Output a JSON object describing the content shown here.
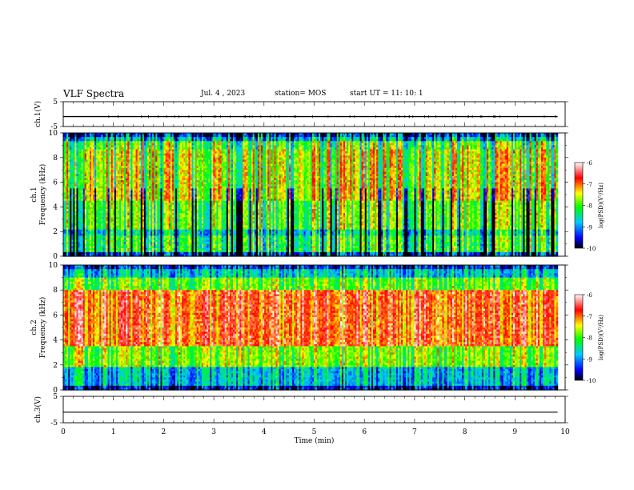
{
  "header": {
    "title": "VLF Spectra",
    "date": "Jul. 4 , 2023",
    "station": "station= MOS",
    "start_ut": "start UT = 11: 10: 1"
  },
  "chart_data": [
    {
      "type": "line",
      "panel": "ch1-waveform",
      "ylabel": "ch.1(V)",
      "ylim": [
        -5,
        5
      ],
      "yticks": [
        "5",
        "-5"
      ],
      "baseline_value": -1.0
    },
    {
      "type": "heatmap",
      "panel": "ch1-spectrogram",
      "ylabel": "ch.1",
      "ylabel2": "Frequency (kHz)",
      "ylim": [
        0,
        10
      ],
      "yticks": [
        "10",
        "8",
        "6",
        "4",
        "2",
        "0"
      ],
      "colorbar": {
        "label": "log(PSD)(V²/Hz)",
        "range": [
          -10,
          -6
        ],
        "ticks": [
          "-6",
          "-7",
          "-8",
          "-9",
          "-10"
        ]
      }
    },
    {
      "type": "heatmap",
      "panel": "ch2-spectrogram",
      "ylabel": "ch.2",
      "ylabel2": "Frequency (kHz)",
      "ylim": [
        0,
        10
      ],
      "yticks": [
        "10",
        "8",
        "6",
        "4",
        "2",
        "0"
      ],
      "colorbar": {
        "label": "log(PSD)(V²/Hz)",
        "range": [
          -10,
          -6
        ],
        "ticks": [
          "-6",
          "-7",
          "-8",
          "-9",
          "-10"
        ]
      }
    },
    {
      "type": "line",
      "panel": "ch3-waveform",
      "ylabel": "ch.3(V)",
      "ylim": [
        -5,
        5
      ],
      "yticks": [
        "5",
        "-5"
      ],
      "baseline_value": -1.0
    }
  ],
  "xaxis": {
    "label": "Time (min)",
    "xlim": [
      0,
      10
    ],
    "data_end": 9.85,
    "ticks": [
      "0",
      "1",
      "2",
      "3",
      "4",
      "5",
      "6",
      "7",
      "8",
      "9",
      "10"
    ]
  }
}
